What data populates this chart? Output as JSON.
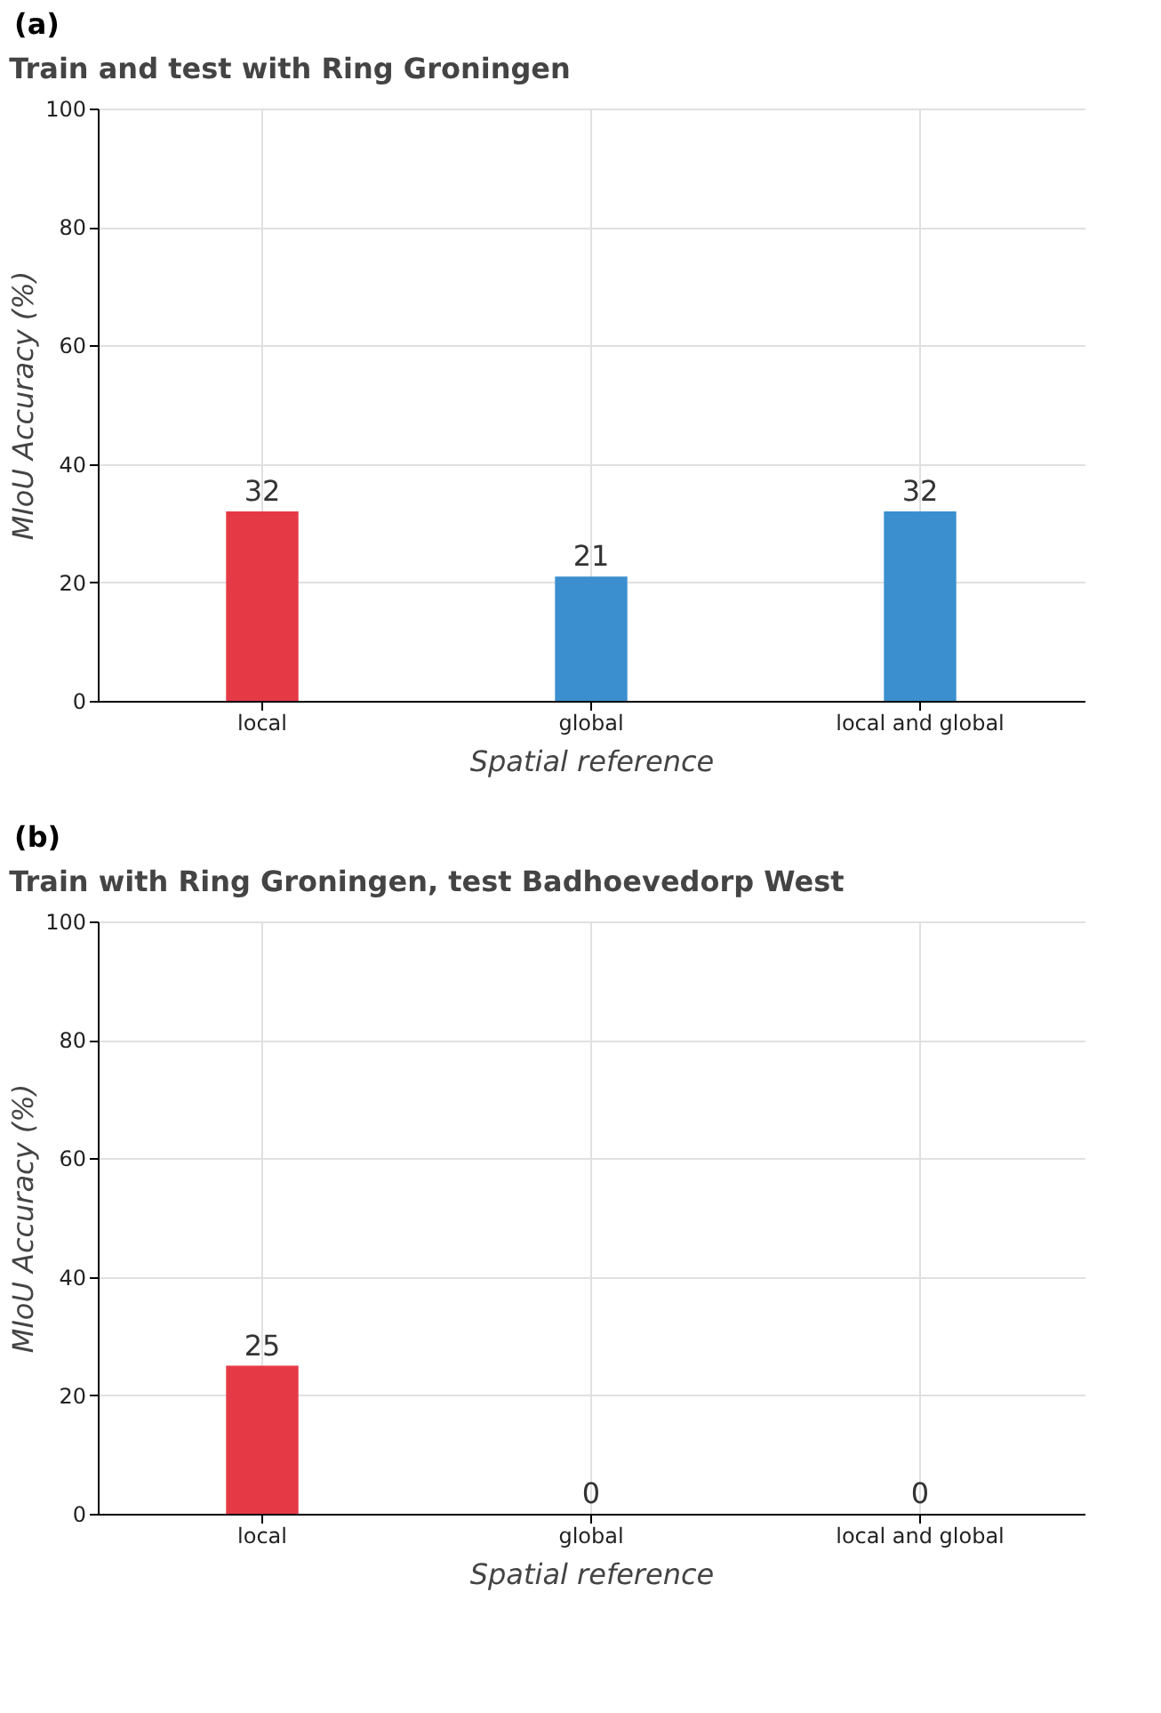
{
  "chart_data": [
    {
      "type": "bar",
      "title": "Train and test with Ring Groningen",
      "annotations": [
        "(a)"
      ],
      "xlabel": "Spatial reference",
      "ylabel": "MIoU Accuracy (%)",
      "categories": [
        "local",
        "global",
        "local and global"
      ],
      "values": [
        32,
        21,
        32
      ],
      "colors": [
        "#e63946",
        "#3b8fcf",
        "#3b8fcf"
      ],
      "ylim": [
        0,
        100
      ],
      "yticks": [
        0,
        20,
        40,
        60,
        80,
        100
      ],
      "grid": true,
      "data_labels": true
    },
    {
      "type": "bar",
      "title": "Train with Ring Groningen, test Badhoevedorp West",
      "annotations": [
        "(b)"
      ],
      "xlabel": "Spatial reference",
      "ylabel": "MIoU Accuracy (%)",
      "categories": [
        "local",
        "global",
        "local and global"
      ],
      "values": [
        25,
        0,
        0
      ],
      "colors": [
        "#e63946",
        "#3b8fcf",
        "#3b8fcf"
      ],
      "ylim": [
        0,
        100
      ],
      "yticks": [
        0,
        20,
        40,
        60,
        80,
        100
      ],
      "grid": true,
      "data_labels": true
    }
  ]
}
